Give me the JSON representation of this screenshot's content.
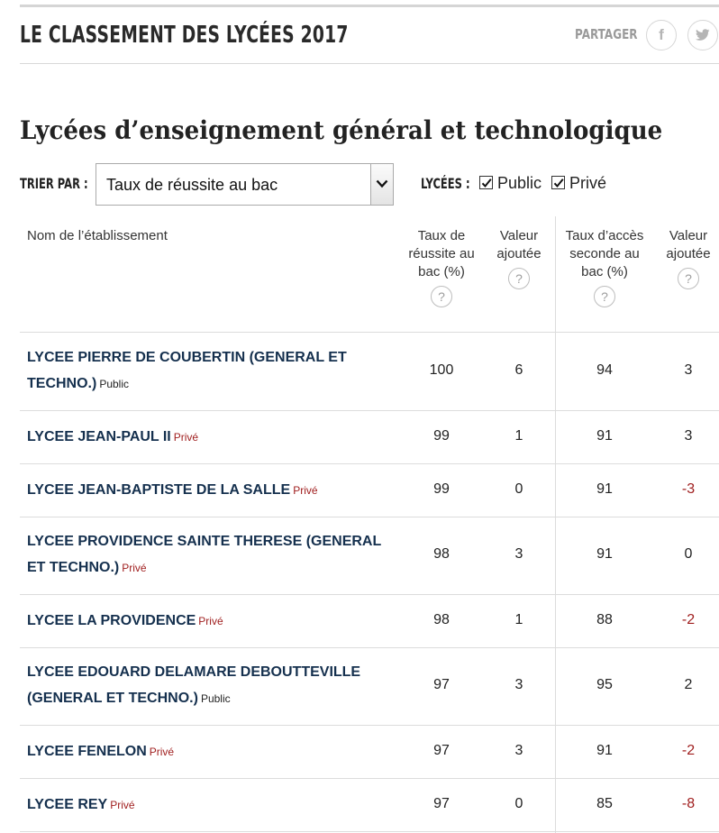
{
  "header": {
    "title": "LE CLASSEMENT DES LYCÉES 2017",
    "share_label": "PARTAGER",
    "share_icons": [
      "facebook-icon",
      "twitter-icon"
    ]
  },
  "section": {
    "title": "Lycées d’enseignement général et technologique"
  },
  "controls": {
    "sort_label": "TRIER PAR :",
    "sort_selected": "Taux de réussite au bac",
    "filter_label": "LYCÉES :",
    "filters": [
      {
        "label": "Public",
        "checked": true
      },
      {
        "label": "Privé",
        "checked": true
      }
    ]
  },
  "table": {
    "headers": {
      "name": "Nom de l’établissement",
      "c1": "Taux de réussite au bac (%)",
      "c2": "Valeur ajoutée",
      "c3": "Taux d’accès seconde au bac (%)",
      "c4": "Valeur ajoutée",
      "help": "?"
    },
    "rows": [
      {
        "name": "LYCEE PIERRE DE COUBERTIN (GENERAL ET TECHNO.)",
        "status": "Public",
        "reussite": "100",
        "va1": "6",
        "acces": "94",
        "va2": "3"
      },
      {
        "name": "LYCEE JEAN-PAUL II",
        "status": "Privé",
        "reussite": "99",
        "va1": "1",
        "acces": "91",
        "va2": "3"
      },
      {
        "name": "LYCEE JEAN-BAPTISTE DE LA SALLE",
        "status": "Privé",
        "reussite": "99",
        "va1": "0",
        "acces": "91",
        "va2": "-3"
      },
      {
        "name": "LYCEE PROVIDENCE SAINTE THERESE (GENERAL ET TECHNO.)",
        "status": "Privé",
        "reussite": "98",
        "va1": "3",
        "acces": "91",
        "va2": "0"
      },
      {
        "name": "LYCEE LA PROVIDENCE",
        "status": "Privé",
        "reussite": "98",
        "va1": "1",
        "acces": "88",
        "va2": "-2"
      },
      {
        "name": "LYCEE EDOUARD DELAMARE DEBOUTTEVILLE (GENERAL ET TECHNO.)",
        "status": "Public",
        "reussite": "97",
        "va1": "3",
        "acces": "95",
        "va2": "2"
      },
      {
        "name": "LYCEE FENELON",
        "status": "Privé",
        "reussite": "97",
        "va1": "3",
        "acces": "91",
        "va2": "-2"
      },
      {
        "name": "LYCEE REY",
        "status": "Privé",
        "reussite": "97",
        "va1": "0",
        "acces": "85",
        "va2": "-8"
      }
    ]
  },
  "colors": {
    "school_name": "#15304e",
    "negative_value": "#a01f1f",
    "prive_label": "#a01f1f"
  }
}
